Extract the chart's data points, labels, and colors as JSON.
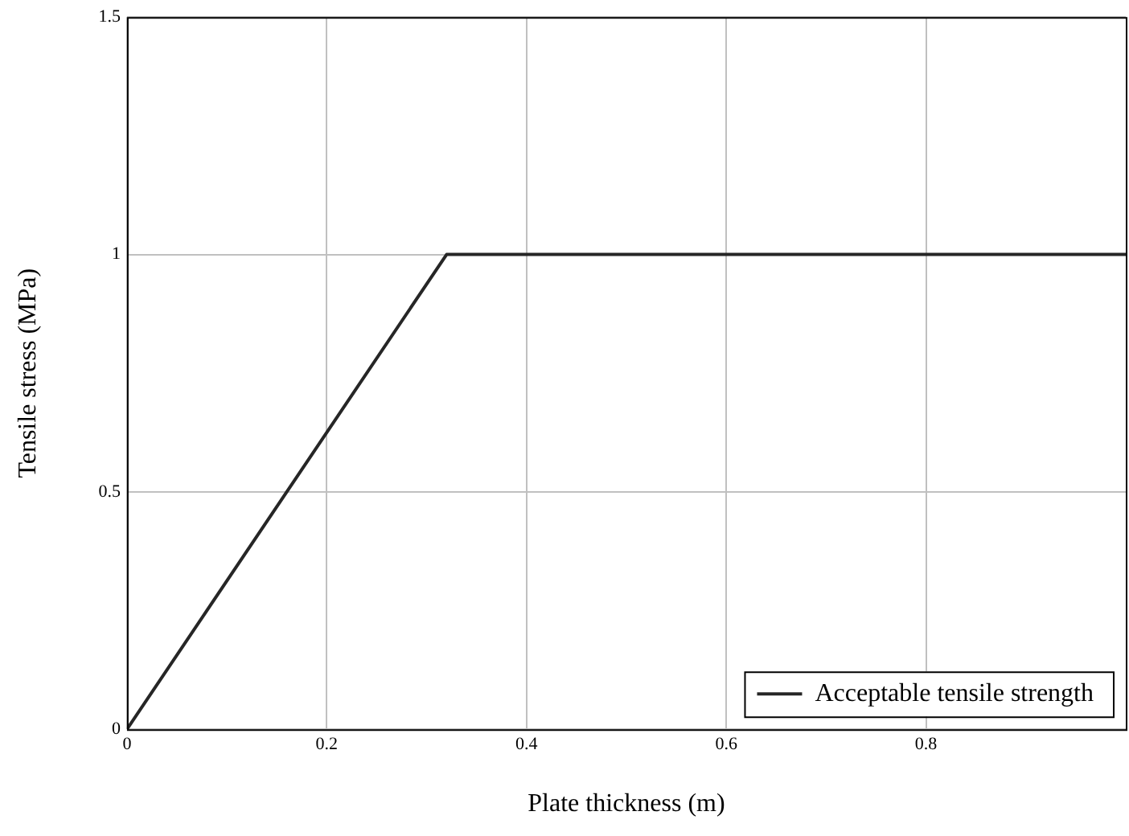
{
  "chart_data": {
    "type": "line",
    "xlabel": "Plate thickness (m)",
    "ylabel": "Tensile stress (MPa)",
    "x": [
      0,
      0.32,
      1
    ],
    "series": [
      {
        "name": "Acceptable tensile strength",
        "color": "#262626",
        "values": [
          0,
          1,
          1
        ]
      }
    ],
    "xlim": [
      0,
      1
    ],
    "xticks": [
      0,
      0.2,
      0.4,
      0.6,
      0.8
    ],
    "ylim": [
      0,
      1.5
    ],
    "yticks": [
      0,
      0.5,
      1,
      1.5
    ],
    "grid": true,
    "legend": "bottom right",
    "marker": "none",
    "line_style": "solid"
  }
}
